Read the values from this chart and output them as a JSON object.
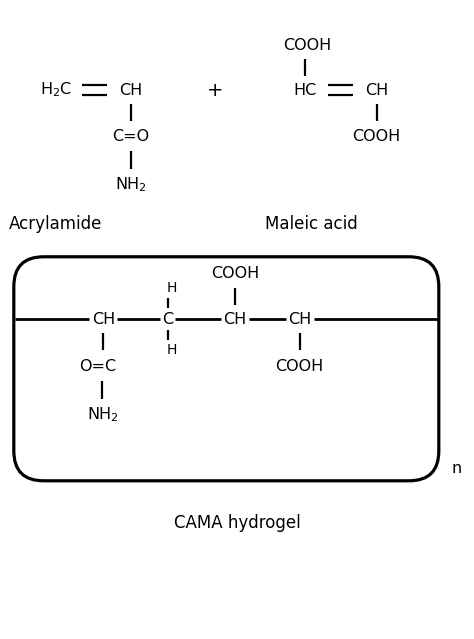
{
  "bg_color": "#ffffff",
  "text_color": "#000000",
  "line_color": "#000000",
  "title1": "Acrylamide",
  "title2": "Maleic acid",
  "title3": "CAMA hydrogel",
  "fig_width": 4.74,
  "fig_height": 6.39,
  "font_size_label": 11.5,
  "font_size_small": 10,
  "font_size_title": 12
}
